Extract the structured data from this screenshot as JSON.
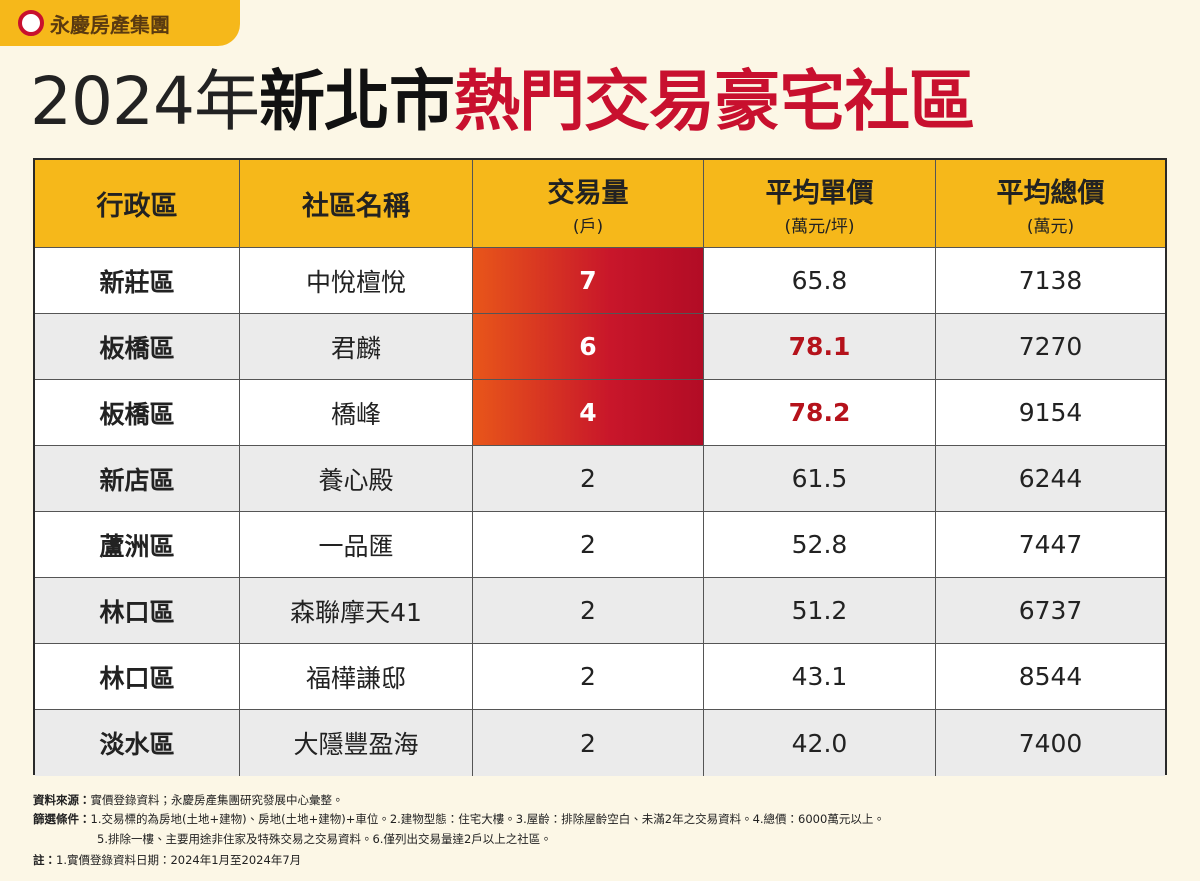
{
  "brand": "永慶房產集團",
  "title": {
    "year": "2024年",
    "city": "新北市",
    "topic": "熱門交易豪宅社區"
  },
  "table": {
    "headers": [
      {
        "main": "行政區"
      },
      {
        "main": "社區名稱"
      },
      {
        "main": "交易量",
        "sub": "(戶)"
      },
      {
        "main": "平均單價",
        "sub": "(萬元/坪)"
      },
      {
        "main": "平均總價",
        "sub": "(萬元)"
      }
    ],
    "rows": [
      [
        "新莊區",
        "中悅檀悅",
        "7",
        "65.8",
        "7138"
      ],
      [
        "板橋區",
        "君麟",
        "6",
        "78.1",
        "7270"
      ],
      [
        "板橋區",
        "橋峰",
        "4",
        "78.2",
        "9154"
      ],
      [
        "新店區",
        "養心殿",
        "2",
        "61.5",
        "6244"
      ],
      [
        "蘆洲區",
        "一品匯",
        "2",
        "52.8",
        "7447"
      ],
      [
        "林口區",
        "森聯摩天41",
        "2",
        "51.2",
        "6737"
      ],
      [
        "林口區",
        "福樺謙邸",
        "2",
        "43.1",
        "8544"
      ],
      [
        "淡水區",
        "大隱豐盈海",
        "2",
        "42.0",
        "7400"
      ]
    ]
  },
  "notes": {
    "source": {
      "label": "資料來源：",
      "text": "實價登錄資料；永慶房產集團研究發展中心彙整。"
    },
    "criteria": {
      "label": "篩選條件：",
      "lines": [
        "1.交易標的為房地(土地+建物)、房地(土地+建物)+車位。2.建物型態：住宅大樓。3.屋齡：排除屋齡空白、未滿2年之交易資料。4.總價：6000萬元以上。",
        "5.排除一樓、主要用途非住家及特殊交易之交易資料。6.僅列出交易量達2戶以上之社區。"
      ]
    },
    "remark": {
      "label": "註：",
      "text": "1.實價登錄資料日期：2024年1月至2024年7月"
    }
  }
}
